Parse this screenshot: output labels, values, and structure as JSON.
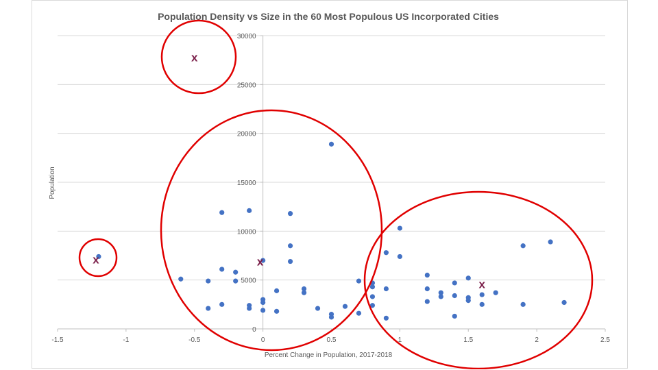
{
  "chart_data": {
    "type": "scatter",
    "title": "Population Density vs Size in the 60 Most Populous US Incorporated Cities",
    "xlabel": "Percent Change in Population, 2017-2018",
    "ylabel": "Population",
    "xlim": [
      -1.5,
      2.5
    ],
    "ylim": [
      0,
      30000
    ],
    "xticks": [
      -1.5,
      -1,
      -0.5,
      0,
      0.5,
      1,
      1.5,
      2,
      2.5
    ],
    "xtick_labels": [
      "-1.5",
      "-1",
      "-0.5",
      "0",
      "0.5",
      "1",
      "1.5",
      "2",
      "2.5"
    ],
    "yticks": [
      0,
      5000,
      10000,
      15000,
      20000,
      25000,
      30000
    ],
    "ytick_labels": [
      "0",
      "5000",
      "10000",
      "15000",
      "20000",
      "25000",
      "30000"
    ],
    "grid": "horizontal",
    "legend": "none",
    "point_color": "#4472c4",
    "points": [
      {
        "x": -0.6,
        "y": 5100
      },
      {
        "x": -0.4,
        "y": 4900
      },
      {
        "x": -0.4,
        "y": 2100
      },
      {
        "x": -0.3,
        "y": 11900
      },
      {
        "x": -0.3,
        "y": 6100
      },
      {
        "x": -0.3,
        "y": 2500
      },
      {
        "x": -0.2,
        "y": 5800
      },
      {
        "x": -0.2,
        "y": 4900
      },
      {
        "x": -0.1,
        "y": 12100
      },
      {
        "x": -0.1,
        "y": 2400
      },
      {
        "x": -0.1,
        "y": 2100
      },
      {
        "x": 0.0,
        "y": 7000
      },
      {
        "x": 0.0,
        "y": 3000
      },
      {
        "x": 0.0,
        "y": 2700
      },
      {
        "x": 0.0,
        "y": 1900
      },
      {
        "x": 0.1,
        "y": 3900
      },
      {
        "x": 0.1,
        "y": 1800
      },
      {
        "x": 0.2,
        "y": 11800
      },
      {
        "x": 0.2,
        "y": 8500
      },
      {
        "x": 0.2,
        "y": 6900
      },
      {
        "x": 0.3,
        "y": 4100
      },
      {
        "x": 0.3,
        "y": 3700
      },
      {
        "x": 0.4,
        "y": 2100
      },
      {
        "x": 0.5,
        "y": 18900
      },
      {
        "x": 0.5,
        "y": 1500
      },
      {
        "x": 0.5,
        "y": 1200
      },
      {
        "x": 0.6,
        "y": 2300
      },
      {
        "x": 0.7,
        "y": 4900
      },
      {
        "x": 0.7,
        "y": 1600
      },
      {
        "x": 0.8,
        "y": 4700
      },
      {
        "x": 0.8,
        "y": 4300
      },
      {
        "x": 0.8,
        "y": 3300
      },
      {
        "x": 0.8,
        "y": 2400
      },
      {
        "x": 0.9,
        "y": 7800
      },
      {
        "x": 0.9,
        "y": 4100
      },
      {
        "x": 0.9,
        "y": 1100
      },
      {
        "x": 1.0,
        "y": 10300
      },
      {
        "x": 1.0,
        "y": 7400
      },
      {
        "x": 1.2,
        "y": 5500
      },
      {
        "x": 1.2,
        "y": 4100
      },
      {
        "x": 1.2,
        "y": 2800
      },
      {
        "x": 1.3,
        "y": 3700
      },
      {
        "x": 1.3,
        "y": 3300
      },
      {
        "x": 1.4,
        "y": 4700
      },
      {
        "x": 1.4,
        "y": 3400
      },
      {
        "x": 1.4,
        "y": 1300
      },
      {
        "x": 1.5,
        "y": 5200
      },
      {
        "x": 1.5,
        "y": 3200
      },
      {
        "x": 1.5,
        "y": 2900
      },
      {
        "x": 1.6,
        "y": 3500
      },
      {
        "x": 1.6,
        "y": 2500
      },
      {
        "x": 1.7,
        "y": 3700
      },
      {
        "x": 1.9,
        "y": 8500
      },
      {
        "x": 1.9,
        "y": 2500
      },
      {
        "x": 2.1,
        "y": 8900
      },
      {
        "x": 2.2,
        "y": 2700
      },
      {
        "x": -1.2,
        "y": 7400
      }
    ],
    "annotations": {
      "cluster_centroid_markers": {
        "symbol": "x",
        "color": "#7b1f4a",
        "points": [
          {
            "x": -0.5,
            "y": 27800
          },
          {
            "x": -1.22,
            "y": 7100
          },
          {
            "x": -0.02,
            "y": 6900
          },
          {
            "x": 1.6,
            "y": 4600
          }
        ]
      },
      "cluster_circles": {
        "color": "#e00000",
        "count": 4
      }
    }
  }
}
